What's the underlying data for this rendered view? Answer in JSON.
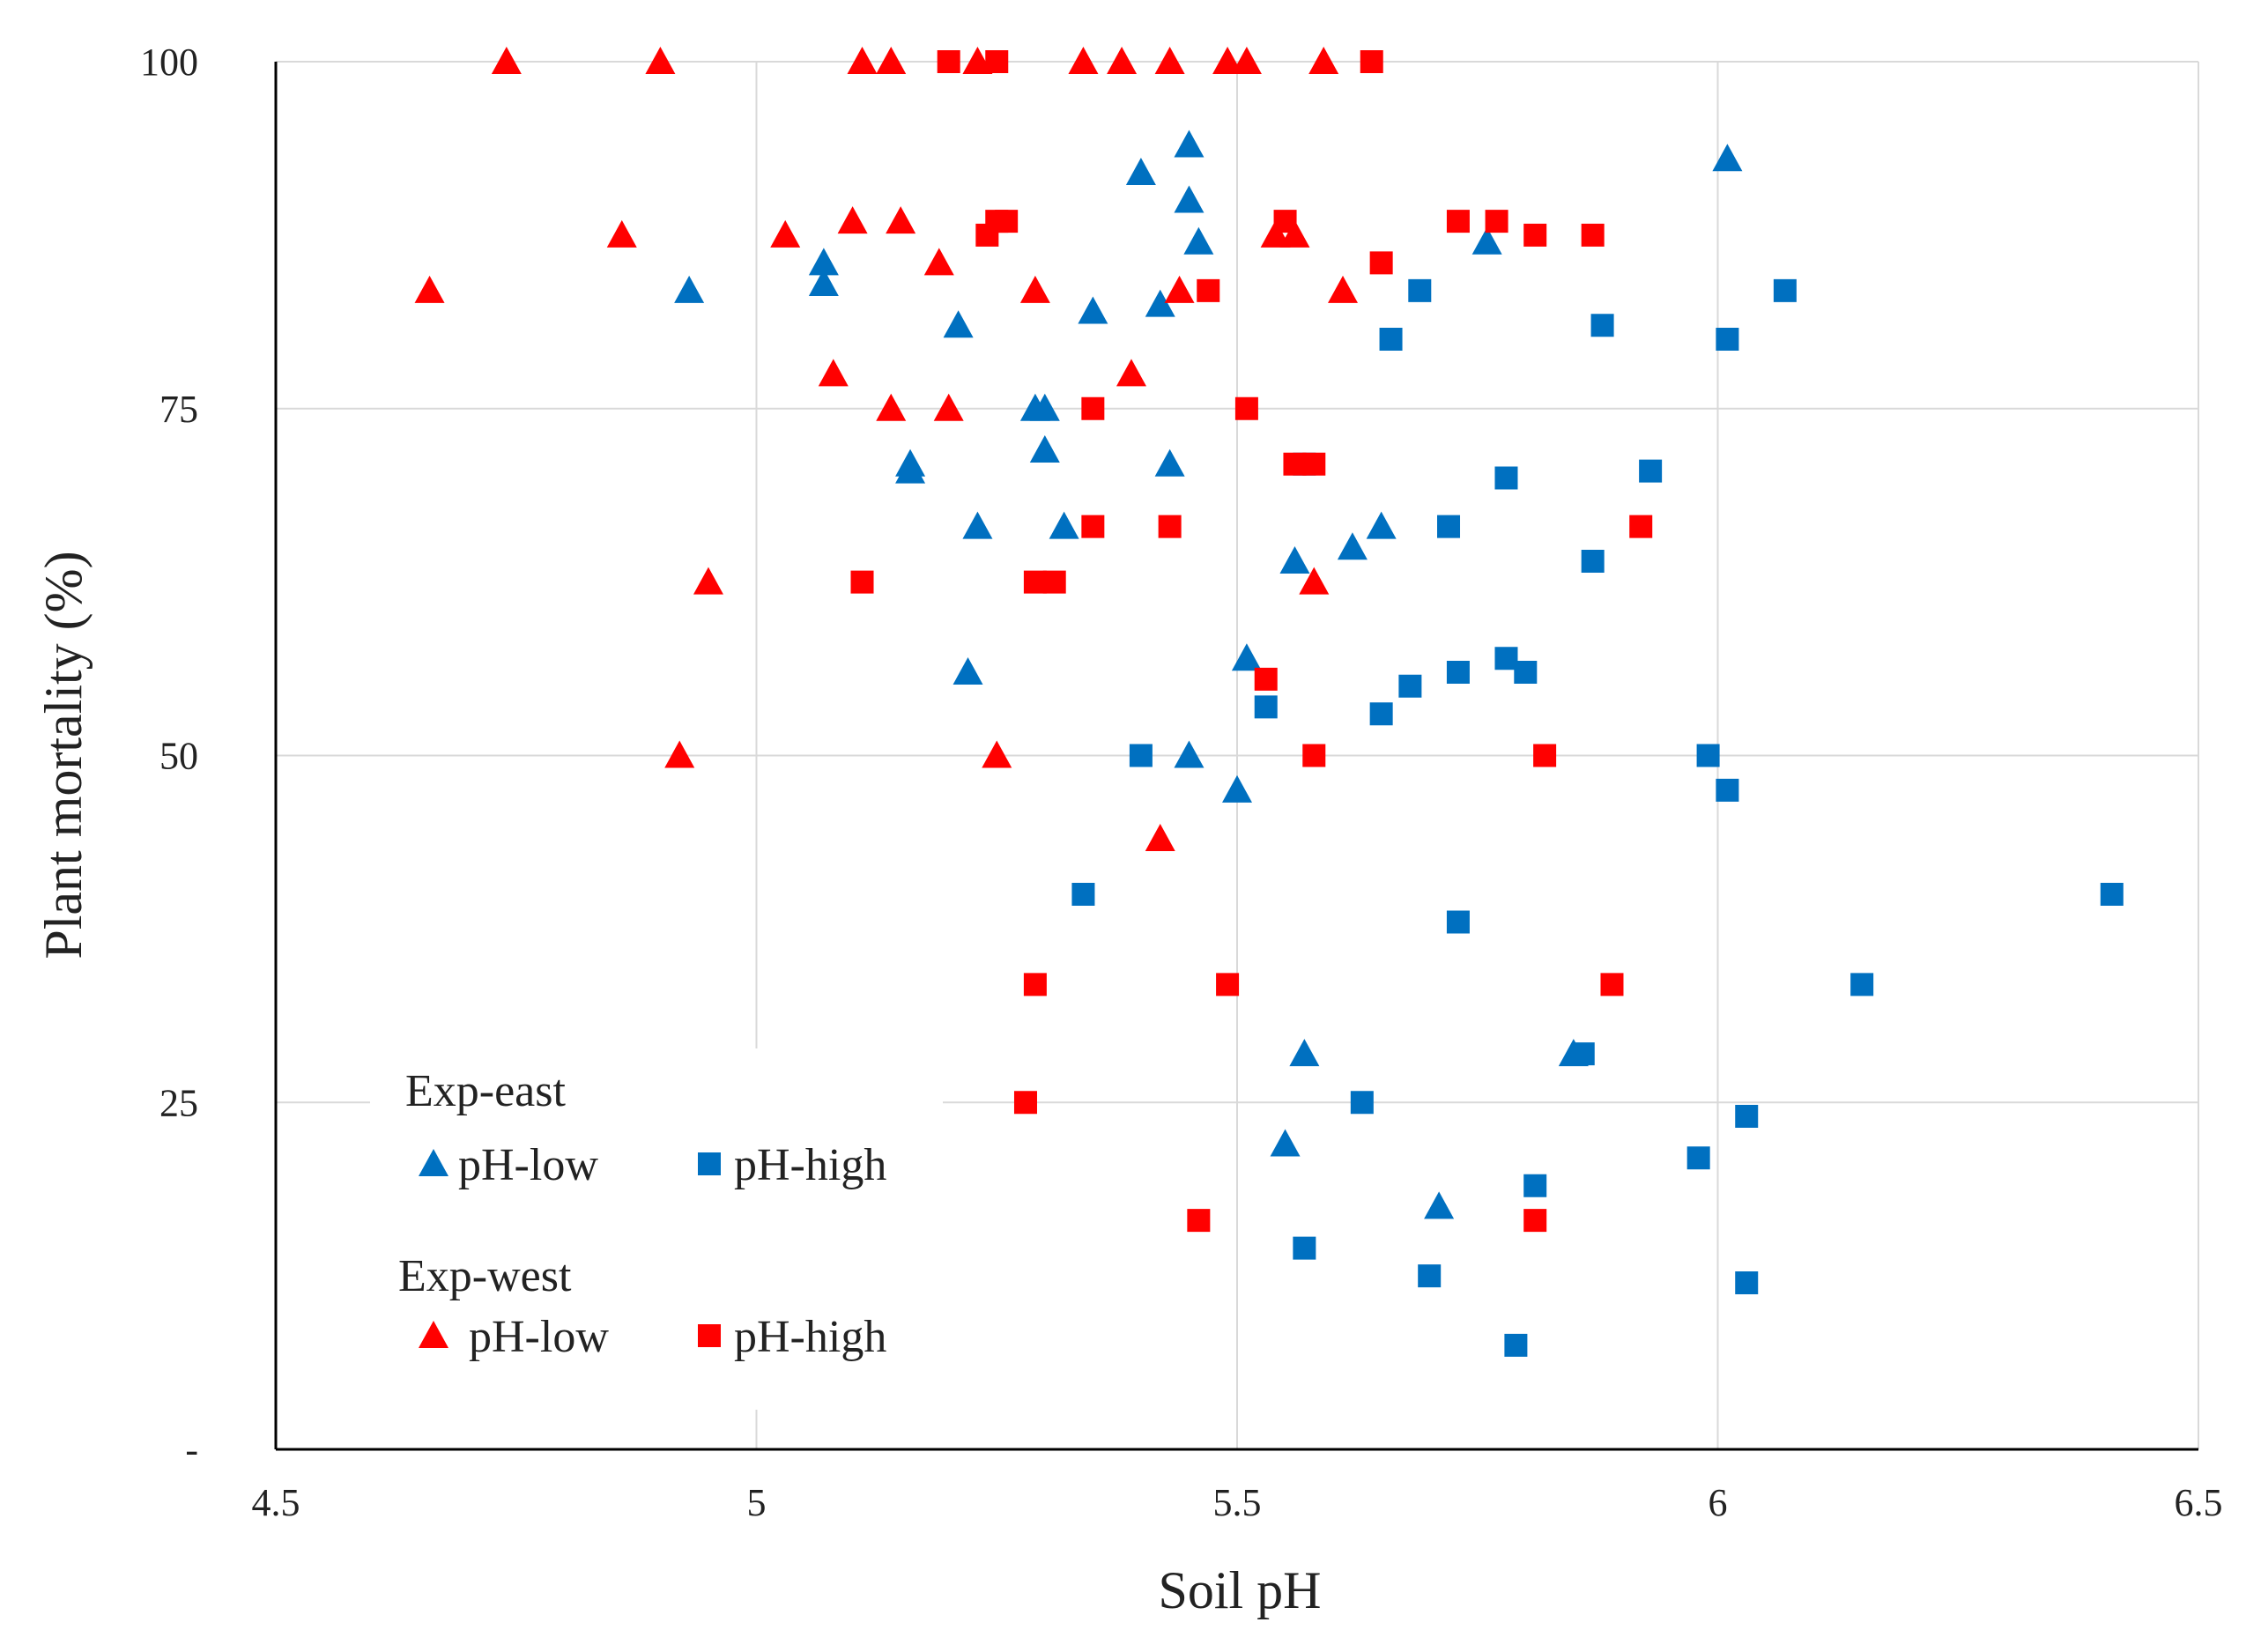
{
  "chart_data": {
    "type": "scatter",
    "title": "",
    "xlabel": "Soil pH",
    "ylabel": "Plant mortality (%)",
    "xlim": [
      4.5,
      6.5
    ],
    "ylim": [
      0,
      100
    ],
    "x_ticks": [
      4.5,
      5,
      5.5,
      6,
      6.5
    ],
    "x_tick_labels": [
      "4.5",
      "5",
      "5.5",
      "6",
      "6.5"
    ],
    "y_ticks": [
      0,
      25,
      50,
      75,
      100
    ],
    "y_tick_labels": [
      "-",
      "25",
      "50",
      "75",
      "100"
    ],
    "grid": true,
    "colors": {
      "east": "#0070C0",
      "west": "#FF0000",
      "grid": "#d9d9d9",
      "axis": "#000000"
    },
    "legend": {
      "placement": "bottom-left",
      "groups": [
        {
          "title": "Exp-east",
          "entries": [
            {
              "label": "pH-low",
              "marker": "triangle",
              "color": "#0070C0"
            },
            {
              "label": "pH-high",
              "marker": "square",
              "color": "#0070C0"
            }
          ]
        },
        {
          "title": "Exp-west",
          "entries": [
            {
              "label": "pH-low",
              "marker": "triangle",
              "color": "#FF0000"
            },
            {
              "label": "pH-high",
              "marker": "square",
              "color": "#FF0000"
            }
          ]
        }
      ]
    },
    "series": [
      {
        "name": "Exp-east pH-low",
        "marker": "triangle",
        "color": "#0070C0",
        "points": [
          [
            4.93,
            83.5
          ],
          [
            5.07,
            85.5
          ],
          [
            5.07,
            84
          ],
          [
            5.16,
            71
          ],
          [
            5.16,
            70.5
          ],
          [
            5.21,
            81
          ],
          [
            5.23,
            66.5
          ],
          [
            5.22,
            56
          ],
          [
            5.29,
            75
          ],
          [
            5.3,
            75
          ],
          [
            5.3,
            72
          ],
          [
            5.32,
            66.5
          ],
          [
            5.35,
            82
          ],
          [
            5.4,
            92
          ],
          [
            5.42,
            82.5
          ],
          [
            5.43,
            71
          ],
          [
            5.45,
            94
          ],
          [
            5.45,
            90
          ],
          [
            5.46,
            87
          ],
          [
            5.45,
            50
          ],
          [
            5.5,
            47.5
          ],
          [
            5.51,
            57
          ],
          [
            5.55,
            22
          ],
          [
            5.56,
            64
          ],
          [
            5.57,
            28.5
          ],
          [
            5.62,
            65
          ],
          [
            5.65,
            66.5
          ],
          [
            5.71,
            17.5
          ],
          [
            5.76,
            87
          ],
          [
            5.85,
            28.5
          ],
          [
            6.01,
            93
          ]
        ]
      },
      {
        "name": "Exp-east pH-high",
        "marker": "square",
        "color": "#0070C0",
        "points": [
          [
            5.34,
            40
          ],
          [
            5.4,
            50
          ],
          [
            5.53,
            53.5
          ],
          [
            5.57,
            14.5
          ],
          [
            5.57,
            71
          ],
          [
            5.63,
            25
          ],
          [
            5.65,
            53
          ],
          [
            5.66,
            80
          ],
          [
            5.68,
            55
          ],
          [
            5.69,
            83.5
          ],
          [
            5.7,
            12.5
          ],
          [
            5.72,
            66.5
          ],
          [
            5.73,
            56
          ],
          [
            5.73,
            38
          ],
          [
            5.78,
            70
          ],
          [
            5.78,
            57
          ],
          [
            5.79,
            7.5
          ],
          [
            5.8,
            56
          ],
          [
            5.81,
            19
          ],
          [
            5.86,
            28.5
          ],
          [
            5.87,
            64
          ],
          [
            5.88,
            81
          ],
          [
            5.93,
            70.5
          ],
          [
            5.98,
            21
          ],
          [
            5.99,
            50
          ],
          [
            6.01,
            80
          ],
          [
            6.01,
            47.5
          ],
          [
            6.03,
            24
          ],
          [
            6.03,
            12
          ],
          [
            6.07,
            83.5
          ],
          [
            6.15,
            33.5
          ],
          [
            6.41,
            40
          ]
        ]
      },
      {
        "name": "Exp-west pH-low",
        "marker": "triangle",
        "color": "#FF0000",
        "points": [
          [
            4.66,
            83.5
          ],
          [
            4.74,
            100
          ],
          [
            4.86,
            87.5
          ],
          [
            4.9,
            100
          ],
          [
            4.92,
            50
          ],
          [
            4.95,
            62.5
          ],
          [
            5.03,
            87.5
          ],
          [
            5.08,
            77.5
          ],
          [
            5.1,
            88.5
          ],
          [
            5.11,
            100
          ],
          [
            5.14,
            100
          ],
          [
            5.14,
            75
          ],
          [
            5.15,
            88.5
          ],
          [
            5.19,
            85.5
          ],
          [
            5.2,
            75
          ],
          [
            5.23,
            100
          ],
          [
            5.25,
            50
          ],
          [
            5.29,
            83.5
          ],
          [
            5.34,
            100
          ],
          [
            5.38,
            100
          ],
          [
            5.39,
            77.5
          ],
          [
            5.42,
            44
          ],
          [
            5.43,
            100
          ],
          [
            5.44,
            83.5
          ],
          [
            5.49,
            100
          ],
          [
            5.51,
            100
          ],
          [
            5.54,
            87.5
          ],
          [
            5.56,
            87.5
          ],
          [
            5.58,
            62.5
          ],
          [
            5.59,
            100
          ],
          [
            5.61,
            83.5
          ]
        ]
      },
      {
        "name": "Exp-west pH-high",
        "marker": "square",
        "color": "#FF0000",
        "points": [
          [
            5.11,
            62.5
          ],
          [
            5.2,
            100
          ],
          [
            5.24,
            87.5
          ],
          [
            5.25,
            100
          ],
          [
            5.25,
            88.5
          ],
          [
            5.26,
            88.5
          ],
          [
            5.28,
            25
          ],
          [
            5.29,
            33.5
          ],
          [
            5.29,
            62.5
          ],
          [
            5.31,
            62.5
          ],
          [
            5.35,
            66.5
          ],
          [
            5.35,
            75
          ],
          [
            5.43,
            66.5
          ],
          [
            5.46,
            16.5
          ],
          [
            5.47,
            83.5
          ],
          [
            5.49,
            33.5
          ],
          [
            5.51,
            75
          ],
          [
            5.53,
            55.5
          ],
          [
            5.55,
            88.5
          ],
          [
            5.56,
            71
          ],
          [
            5.58,
            71
          ],
          [
            5.58,
            50
          ],
          [
            5.64,
            100
          ],
          [
            5.65,
            85.5
          ],
          [
            5.73,
            88.5
          ],
          [
            5.77,
            88.5
          ],
          [
            5.81,
            87.5
          ],
          [
            5.81,
            16.5
          ],
          [
            5.82,
            50
          ],
          [
            5.87,
            87.5
          ],
          [
            5.89,
            33.5
          ],
          [
            5.92,
            66.5
          ]
        ]
      }
    ]
  }
}
